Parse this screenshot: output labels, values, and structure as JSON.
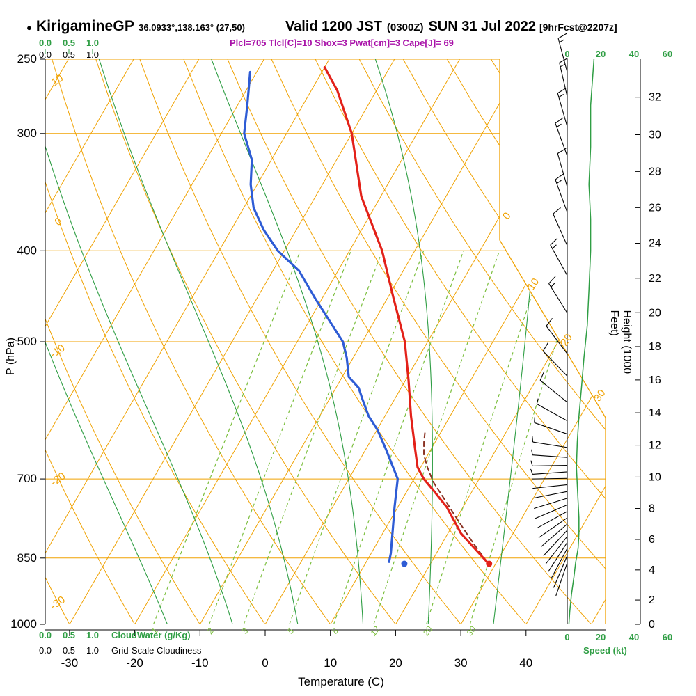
{
  "header": {
    "bullet": "●",
    "station": "KirigamineGP",
    "coords": "36.0933°,138.163° (27,50)",
    "valid": "Valid 1200 JST",
    "valid_z": "(0300Z)",
    "valid_date": "SUN 31 Jul 2022",
    "fcst_tag": "[9hrFcst@2207z]",
    "indices": "Plcl=705 Tlcl[C]=10 Shox=3 Pwat[cm]=3 Cape[J]= 69"
  },
  "axis_labels": {
    "pressure": "P (hPa)",
    "temperature": "Temperature (C)",
    "height": "Height (1000 Feet)",
    "speed": "Speed (kt)",
    "cloudwater": "CloudWater (g/Kg)",
    "cloudiness": "Grid-Scale Cloudiness"
  },
  "chart_data": {
    "type": "line",
    "variant": "skew-t log-p atmospheric sounding",
    "pressure_range_hpa": [
      250,
      1000
    ],
    "temperature_axis_range_c": [
      -30,
      40
    ],
    "pressure_ticks_hpa": [
      250,
      300,
      400,
      500,
      700,
      850,
      1000
    ],
    "temperature_ticks_c": [
      -30,
      -20,
      -10,
      0,
      10,
      20,
      30,
      40
    ],
    "height_ticks_kft": [
      0,
      2,
      4,
      6,
      8,
      10,
      12,
      14,
      16,
      18,
      20,
      22,
      24,
      26,
      28,
      30,
      32
    ],
    "speed_ticks_kt": [
      0,
      20,
      40,
      60
    ],
    "cloud_scale_ticks": [
      "0.0",
      "0.5",
      "1.0"
    ],
    "isotherm_labels_right_c": [
      0,
      10,
      20,
      30
    ],
    "dry_adiabat_labels_left_c": [
      10,
      0,
      -10,
      -20,
      -30
    ],
    "mixing_ratio_labels_gkg": [
      1,
      2,
      3,
      5,
      8,
      12,
      20,
      30
    ],
    "grid": {
      "isotherm_min_c": -120,
      "isotherm_max_c": 50,
      "isotherm_step_c": 10,
      "dry_adiabats_c": [
        -40,
        -30,
        -20,
        -10,
        0,
        10,
        20,
        30,
        40,
        50,
        60,
        70,
        80,
        90,
        100,
        110,
        120,
        130
      ],
      "moist_adiabats_c": [
        -15,
        -5,
        5,
        15,
        25,
        35
      ],
      "mixing_ratios_gkg": [
        1,
        2,
        3,
        5,
        8,
        12,
        20,
        30
      ]
    },
    "temperature_profile": {
      "name": "Temperature",
      "points_p_t": [
        [
          858,
          28.5
        ],
        [
          800,
          22
        ],
        [
          750,
          17.5
        ],
        [
          720,
          14
        ],
        [
          700,
          11.5
        ],
        [
          690,
          10.5
        ],
        [
          680,
          9.5
        ],
        [
          650,
          7.5
        ],
        [
          600,
          4
        ],
        [
          550,
          0.5
        ],
        [
          500,
          -3.5
        ],
        [
          450,
          -9
        ],
        [
          400,
          -15
        ],
        [
          350,
          -23
        ],
        [
          300,
          -30
        ],
        [
          270,
          -36
        ],
        [
          255,
          -40
        ]
      ]
    },
    "dewpoint_profile": {
      "name": "Dewpoint",
      "points_p_t": [
        [
          858,
          13.5
        ],
        [
          840,
          13
        ],
        [
          800,
          11.5
        ],
        [
          750,
          9.5
        ],
        [
          700,
          7.5
        ],
        [
          650,
          3
        ],
        [
          620,
          0
        ],
        [
          600,
          -2.5
        ],
        [
          575,
          -5
        ],
        [
          560,
          -6.5
        ],
        [
          545,
          -9
        ],
        [
          520,
          -11
        ],
        [
          500,
          -13
        ],
        [
          450,
          -21
        ],
        [
          420,
          -26
        ],
        [
          400,
          -31
        ],
        [
          380,
          -35
        ],
        [
          360,
          -38.5
        ],
        [
          340,
          -41
        ],
        [
          320,
          -43
        ],
        [
          300,
          -46.5
        ],
        [
          280,
          -48.5
        ],
        [
          258,
          -51
        ]
      ]
    },
    "parcel_path": {
      "name": "Parcel",
      "points_p_t": [
        [
          858,
          28.5
        ],
        [
          820,
          24.8
        ],
        [
          780,
          20.9
        ],
        [
          740,
          16.9
        ],
        [
          705,
          13.2
        ],
        [
          680,
          11
        ],
        [
          660,
          9.4
        ],
        [
          640,
          8.3
        ],
        [
          625,
          7.6
        ]
      ]
    },
    "surface_markers": [
      {
        "series": "temperature",
        "p": 862,
        "t": 29
      },
      {
        "series": "dewpoint",
        "p": 862,
        "t": 16
      }
    ],
    "wind_barbs_p_dir_spd": [
      [
        258,
        105,
        15
      ],
      [
        274,
        103,
        15
      ],
      [
        295,
        106,
        15
      ],
      [
        317,
        110,
        15
      ],
      [
        342,
        106,
        10
      ],
      [
        364,
        110,
        15
      ],
      [
        395,
        114,
        10
      ],
      [
        425,
        119,
        15
      ],
      [
        466,
        122,
        15
      ],
      [
        515,
        127,
        10
      ],
      [
        544,
        134,
        10
      ],
      [
        580,
        141,
        10
      ],
      [
        607,
        151,
        5
      ],
      [
        627,
        161,
        5
      ],
      [
        648,
        171,
        5
      ],
      [
        664,
        176,
        5
      ],
      [
        677,
        181,
        5
      ],
      [
        688,
        184,
        5
      ],
      [
        699,
        181,
        4
      ],
      [
        710,
        186,
        4
      ],
      [
        722,
        191,
        4
      ],
      [
        734,
        197,
        4
      ],
      [
        746,
        203,
        4
      ],
      [
        758,
        209,
        4
      ],
      [
        770,
        215,
        4
      ],
      [
        782,
        221,
        4
      ],
      [
        794,
        227,
        4
      ],
      [
        806,
        232,
        4
      ],
      [
        818,
        237,
        4
      ],
      [
        830,
        242,
        4
      ],
      [
        845,
        247,
        4
      ],
      [
        860,
        251,
        4
      ]
    ],
    "speed_profile_kt": [
      [
        250,
        16
      ],
      [
        280,
        14
      ],
      [
        310,
        14
      ],
      [
        340,
        13
      ],
      [
        370,
        14
      ],
      [
        400,
        14
      ],
      [
        440,
        13
      ],
      [
        480,
        12
      ],
      [
        520,
        10
      ],
      [
        560,
        8.5
      ],
      [
        600,
        7
      ],
      [
        640,
        6
      ],
      [
        680,
        5.5
      ],
      [
        710,
        6
      ],
      [
        740,
        6.5
      ],
      [
        770,
        7
      ],
      [
        800,
        7
      ],
      [
        830,
        6.5
      ],
      [
        860,
        5
      ],
      [
        890,
        4
      ],
      [
        930,
        2.5
      ],
      [
        970,
        1.5
      ],
      [
        1000,
        1
      ]
    ],
    "colors": {
      "grid_orange": "#f0a202",
      "green": "#2f9e44",
      "mix_green": "#7cbf3f",
      "red": "#e32119",
      "blue": "#2e5cd5",
      "parcel": "#8a3324",
      "purple": "#a810a8",
      "black": "#000000"
    }
  }
}
